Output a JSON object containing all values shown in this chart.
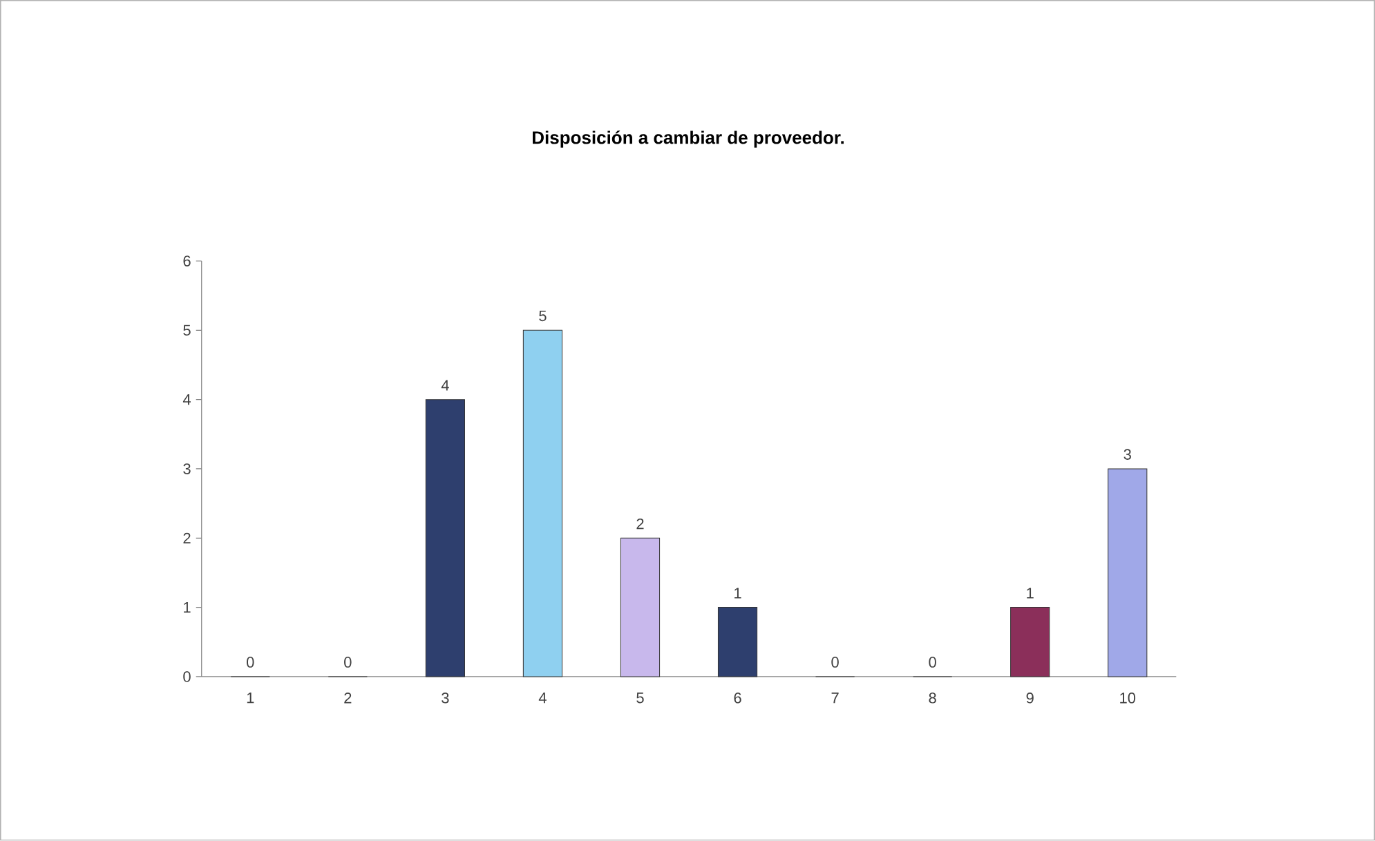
{
  "chart_data": {
    "type": "bar",
    "title": "Disposición a cambiar de proveedor.",
    "categories": [
      "1",
      "2",
      "3",
      "4",
      "5",
      "6",
      "7",
      "8",
      "9",
      "10"
    ],
    "values": [
      0,
      0,
      4,
      5,
      2,
      1,
      0,
      0,
      1,
      3
    ],
    "colors": [
      "#2e3f6e",
      "#2e3f6e",
      "#2e3f6e",
      "#8fd0f0",
      "#c8b8ec",
      "#2e3f6e",
      "#2e3f6e",
      "#2e3f6e",
      "#8b2f5a",
      "#a0a8e8"
    ],
    "ylim": [
      0,
      6
    ],
    "yticks": [
      0,
      1,
      2,
      3,
      4,
      5,
      6
    ],
    "grid": false,
    "data_labels": true
  }
}
